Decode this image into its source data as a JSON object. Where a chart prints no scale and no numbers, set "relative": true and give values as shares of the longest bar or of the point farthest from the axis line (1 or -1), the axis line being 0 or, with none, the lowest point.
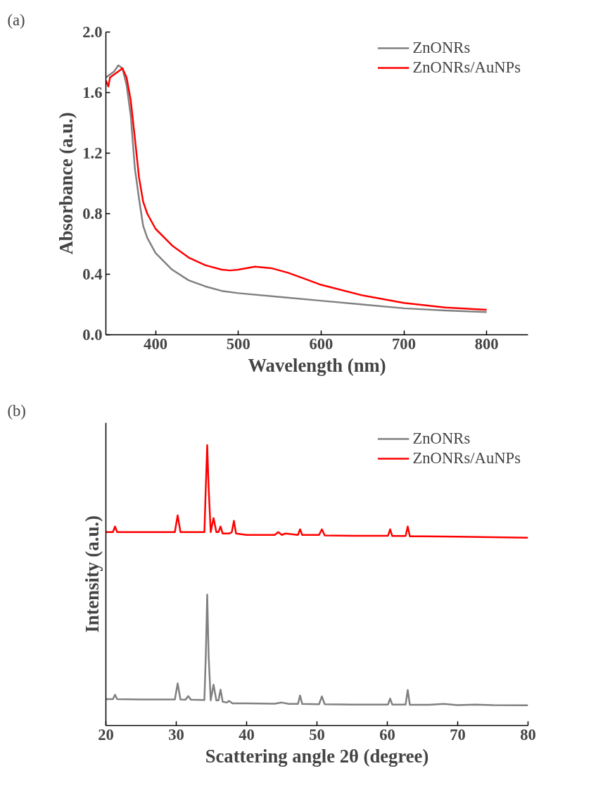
{
  "chart_data": [
    {
      "type": "line",
      "annotations": [
        "(a)"
      ],
      "xlabel": "Wavelength (nm)",
      "ylabel": "Absorbance (a.u.)",
      "xlim": [
        340,
        850
      ],
      "ylim": [
        0,
        2.0
      ],
      "xticks": [
        400,
        500,
        600,
        700,
        800
      ],
      "yticks": [
        {
          "value": 0,
          "label": "0.0"
        },
        0.4,
        0.8,
        1.2,
        1.6,
        {
          "value": 2,
          "label": "2.0"
        }
      ],
      "grid": false,
      "legend": "top right",
      "line_style": "solid",
      "marker": "none",
      "series": [
        {
          "name": "ZnONRs",
          "color": "#808080",
          "x": [
            340,
            345,
            350,
            355,
            360,
            365,
            370,
            375,
            380,
            385,
            390,
            400,
            420,
            440,
            460,
            480,
            500,
            550,
            600,
            650,
            700,
            750,
            800
          ],
          "values": [
            1.7,
            1.72,
            1.74,
            1.78,
            1.76,
            1.65,
            1.45,
            1.1,
            0.9,
            0.72,
            0.64,
            0.54,
            0.43,
            0.36,
            0.32,
            0.29,
            0.275,
            0.25,
            0.225,
            0.2,
            0.175,
            0.16,
            0.15
          ]
        },
        {
          "name": "ZnONRs/AuNPs",
          "color": "#ff0000",
          "x": [
            340,
            343,
            345,
            350,
            355,
            360,
            365,
            370,
            375,
            380,
            385,
            390,
            400,
            420,
            440,
            460,
            480,
            490,
            500,
            520,
            540,
            560,
            580,
            600,
            650,
            700,
            750,
            800
          ],
          "values": [
            1.68,
            1.64,
            1.7,
            1.72,
            1.74,
            1.76,
            1.7,
            1.55,
            1.3,
            1.04,
            0.88,
            0.8,
            0.7,
            0.59,
            0.51,
            0.46,
            0.43,
            0.425,
            0.43,
            0.45,
            0.44,
            0.41,
            0.37,
            0.33,
            0.26,
            0.21,
            0.18,
            0.165
          ]
        }
      ]
    },
    {
      "type": "line",
      "annotations": [
        "(b)"
      ],
      "xlabel": "Scattering angle 2θ (degree)",
      "ylabel": "Intensity (a.u.)",
      "xlim": [
        20,
        80
      ],
      "xticks": [
        20,
        30,
        40,
        50,
        60,
        70,
        80
      ],
      "relative": true,
      "tick_labels": "x",
      "grid": false,
      "legend": "top right",
      "line_style": "solid",
      "marker": "none",
      "series": [
        {
          "name": "ZnONRs",
          "color": "#808080",
          "x": [
            20,
            21,
            21.3,
            21.6,
            25,
            29.8,
            30.2,
            30.6,
            31.3,
            31.7,
            32.1,
            34.0,
            34.2,
            34.4,
            34.6,
            34.9,
            35.3,
            35.7,
            36.0,
            36.3,
            36.6,
            37.2,
            37.5,
            38,
            40,
            44,
            45,
            46,
            47.3,
            47.6,
            47.9,
            50.3,
            50.7,
            51.1,
            55,
            58,
            60.1,
            60.4,
            60.7,
            62.6,
            62.9,
            63.2,
            66,
            68,
            70,
            72.5,
            75,
            80
          ],
          "values": [
            0.094,
            0.094,
            0.11,
            0.094,
            0.093,
            0.093,
            0.15,
            0.093,
            0.092,
            0.105,
            0.092,
            0.091,
            0.25,
            0.467,
            0.25,
            0.09,
            0.146,
            0.09,
            0.09,
            0.128,
            0.085,
            0.082,
            0.088,
            0.079,
            0.079,
            0.078,
            0.082,
            0.077,
            0.077,
            0.107,
            0.077,
            0.076,
            0.104,
            0.076,
            0.075,
            0.075,
            0.075,
            0.096,
            0.075,
            0.075,
            0.127,
            0.074,
            0.074,
            0.077,
            0.073,
            0.075,
            0.073,
            0.072
          ]
        },
        {
          "name": "ZnONRs/AuNPs",
          "color": "#ff0000",
          "x": [
            20,
            21,
            21.3,
            21.6,
            25,
            29.8,
            30.2,
            30.6,
            32,
            34.0,
            34.2,
            34.4,
            34.6,
            34.9,
            35.3,
            35.7,
            36.0,
            36.3,
            36.6,
            37.5,
            37.9,
            38.2,
            38.5,
            40,
            44,
            44.5,
            45,
            45.5,
            47.3,
            47.6,
            47.9,
            50.3,
            50.7,
            51.1,
            55,
            60.1,
            60.4,
            60.7,
            62.6,
            62.9,
            63.2,
            65,
            70,
            75,
            80
          ],
          "values": [
            0.69,
            0.69,
            0.71,
            0.69,
            0.69,
            0.69,
            0.75,
            0.69,
            0.69,
            0.69,
            0.85,
            1.0,
            0.85,
            0.69,
            0.74,
            0.69,
            0.69,
            0.71,
            0.685,
            0.685,
            0.69,
            0.73,
            0.685,
            0.68,
            0.68,
            0.69,
            0.68,
            0.685,
            0.68,
            0.7,
            0.68,
            0.68,
            0.7,
            0.678,
            0.677,
            0.677,
            0.7,
            0.676,
            0.676,
            0.71,
            0.675,
            0.675,
            0.674,
            0.672,
            0.67
          ]
        }
      ]
    }
  ]
}
